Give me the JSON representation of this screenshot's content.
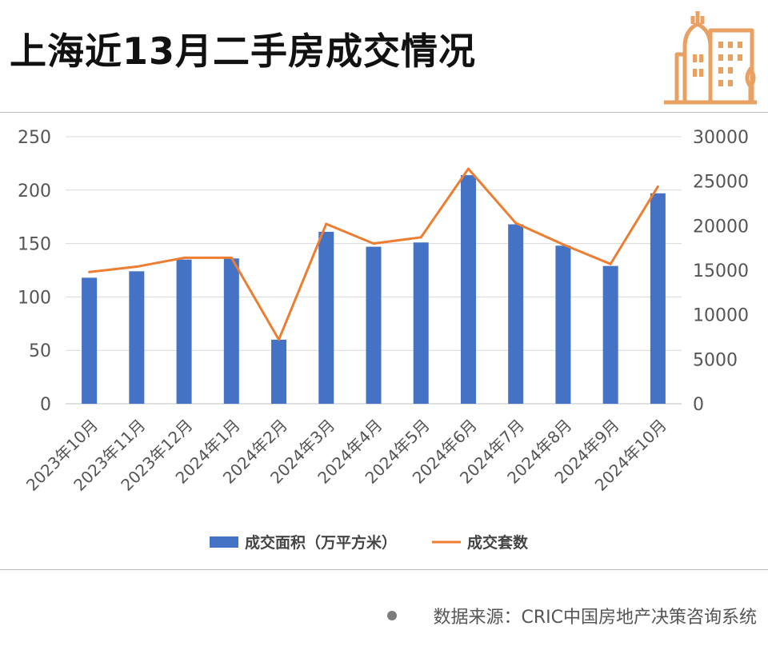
{
  "title": "上海近13月二手房成交情况",
  "source": "数据来源：CRIC中国房地产决策咨询系统",
  "logo_icon": "buildings-icon",
  "colors": {
    "bar": "#4472c4",
    "line": "#ed7d31",
    "accent": "#e9a063"
  },
  "chart_data": {
    "type": "bar",
    "categories": [
      "2023年10月",
      "2023年11月",
      "2023年12月",
      "2024年1月",
      "2024年2月",
      "2024年3月",
      "2024年4月",
      "2024年5月",
      "2024年6月",
      "2024年7月",
      "2024年8月",
      "2024年9月",
      "2024年10月"
    ],
    "series": [
      {
        "name": "成交面积（万平方米）",
        "type": "bar",
        "axis": "left",
        "values": [
          118,
          124,
          135,
          136,
          60,
          161,
          147,
          151,
          214,
          168,
          148,
          129,
          197
        ]
      },
      {
        "name": "成交套数",
        "type": "line",
        "axis": "right",
        "values": [
          14800,
          15400,
          16400,
          16400,
          7200,
          20200,
          18000,
          18700,
          26400,
          20300,
          17900,
          15700,
          24400
        ]
      }
    ],
    "ylim_left": [
      0,
      250
    ],
    "yticks_left": [
      0,
      50,
      100,
      150,
      200,
      250
    ],
    "ylim_right": [
      0,
      30000
    ],
    "yticks_right": [
      0,
      5000,
      10000,
      15000,
      20000,
      25000,
      30000
    ],
    "grid": true,
    "legend": "bottom"
  }
}
